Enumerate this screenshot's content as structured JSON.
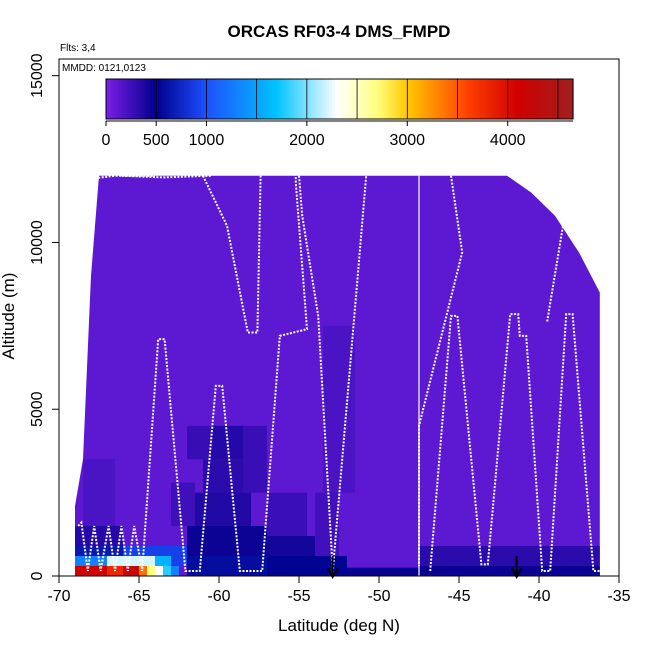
{
  "chart_data": {
    "type": "heatmap",
    "title": "ORCAS RF03-4 DMS_FMPD",
    "xlabel": "Latitude (deg N)",
    "ylabel": "Altitude (m)",
    "xlim": [
      -70,
      -35
    ],
    "ylim": [
      0,
      15500
    ],
    "x_ticks": [
      -70,
      -65,
      -60,
      -55,
      -50,
      -45,
      -40,
      -35
    ],
    "x_tick_labels": [
      "-70",
      "-65",
      "-60",
      "-55",
      "-50",
      "-45",
      "-40",
      "-35"
    ],
    "y_ticks": [
      0,
      5000,
      10000,
      15000
    ],
    "y_tick_labels": [
      "0",
      "5000",
      "10000",
      "15000"
    ],
    "notes": {
      "flights": "Flts: 3,4",
      "dates": "MMDD: 0121,0123"
    },
    "colorbar": {
      "min": 0,
      "max": 4650,
      "ticks": [
        0,
        500,
        1000,
        2000,
        3000,
        4000
      ],
      "tick_labels": [
        "0",
        "500",
        "1000",
        "2000",
        "3000",
        "4000"
      ],
      "stops": [
        {
          "v": 0,
          "color": "#7b1fe8"
        },
        {
          "v": 500,
          "color": "#00008c"
        },
        {
          "v": 1000,
          "color": "#1e50ff"
        },
        {
          "v": 1700,
          "color": "#00c3ff"
        },
        {
          "v": 2300,
          "color": "#ffffff"
        },
        {
          "v": 2700,
          "color": "#ffff80"
        },
        {
          "v": 3000,
          "color": "#ffc800"
        },
        {
          "v": 3600,
          "color": "#ff4000"
        },
        {
          "v": 4100,
          "color": "#d00000"
        },
        {
          "v": 4650,
          "color": "#a02020"
        }
      ]
    },
    "background_value": 120,
    "coverage": [
      {
        "x": -69,
        "top": 2100
      },
      {
        "x": -68.5,
        "top": 3500
      },
      {
        "x": -68,
        "top": 9000
      },
      {
        "x": -67.5,
        "top": 12000
      },
      {
        "x": -47.5,
        "top": 12000
      },
      {
        "x": -42,
        "top": 12000
      },
      {
        "x": -40.5,
        "top": 11500
      },
      {
        "x": -39,
        "top": 10800
      },
      {
        "x": -37.5,
        "top": 9700
      },
      {
        "x": -36.2,
        "top": 8500
      },
      {
        "x": -36.2,
        "top": 0
      },
      {
        "x": -69,
        "top": 0
      }
    ],
    "cells": [
      {
        "x": [
          -69,
          -67
        ],
        "y": [
          0,
          300
        ],
        "v": 4100
      },
      {
        "x": [
          -67,
          -66
        ],
        "y": [
          0,
          300
        ],
        "v": 3800
      },
      {
        "x": [
          -66,
          -65
        ],
        "y": [
          0,
          300
        ],
        "v": 4200
      },
      {
        "x": [
          -65,
          -64.5
        ],
        "y": [
          0,
          300
        ],
        "v": 3400
      },
      {
        "x": [
          -64.5,
          -64
        ],
        "y": [
          0,
          300
        ],
        "v": 2700
      },
      {
        "x": [
          -64,
          -63.5
        ],
        "y": [
          0,
          300
        ],
        "v": 2300
      },
      {
        "x": [
          -63.5,
          -63
        ],
        "y": [
          0,
          300
        ],
        "v": 1800
      },
      {
        "x": [
          -63,
          -62.5
        ],
        "y": [
          0,
          300
        ],
        "v": 1300
      },
      {
        "x": [
          -69,
          -67
        ],
        "y": [
          300,
          600
        ],
        "v": 1300
      },
      {
        "x": [
          -67,
          -64
        ],
        "y": [
          300,
          600
        ],
        "v": 2200
      },
      {
        "x": [
          -64,
          -63
        ],
        "y": [
          300,
          600
        ],
        "v": 1600
      },
      {
        "x": [
          -63,
          -62
        ],
        "y": [
          300,
          600
        ],
        "v": 900
      },
      {
        "x": [
          -69,
          -66
        ],
        "y": [
          600,
          900
        ],
        "v": 650
      },
      {
        "x": [
          -66,
          -62
        ],
        "y": [
          600,
          900
        ],
        "v": 900
      },
      {
        "x": [
          -62,
          -57
        ],
        "y": [
          0,
          600
        ],
        "v": 580
      },
      {
        "x": [
          -57,
          -52
        ],
        "y": [
          0,
          600
        ],
        "v": 520
      },
      {
        "x": [
          -52,
          -47.5
        ],
        "y": [
          0,
          250
        ],
        "v": 470
      },
      {
        "x": [
          -47.5,
          -36.2
        ],
        "y": [
          0,
          300
        ],
        "v": 460
      },
      {
        "x": [
          -62,
          -57
        ],
        "y": [
          600,
          1500
        ],
        "v": 450
      },
      {
        "x": [
          -57,
          -53
        ],
        "y": [
          600,
          1200
        ],
        "v": 420
      },
      {
        "x": [
          -69,
          -66
        ],
        "y": [
          900,
          1500
        ],
        "v": 350
      },
      {
        "x": [
          -47.5,
          -36.2
        ],
        "y": [
          300,
          900
        ],
        "v": 330
      },
      {
        "x": [
          -61.5,
          -58
        ],
        "y": [
          1500,
          2500
        ],
        "v": 370
      },
      {
        "x": [
          -61,
          -58.5
        ],
        "y": [
          2500,
          3500
        ],
        "v": 330
      },
      {
        "x": [
          -60.5,
          -58.5
        ],
        "y": [
          3500,
          4500
        ],
        "v": 350
      },
      {
        "x": [
          -62,
          -60.5
        ],
        "y": [
          3500,
          4500
        ],
        "v": 280
      },
      {
        "x": [
          -58.5,
          -57
        ],
        "y": [
          2500,
          4500
        ],
        "v": 270
      },
      {
        "x": [
          -63,
          -61.5
        ],
        "y": [
          1500,
          2800
        ],
        "v": 250
      },
      {
        "x": [
          -57,
          -54.5
        ],
        "y": [
          1200,
          2500
        ],
        "v": 260
      },
      {
        "x": [
          -53.5,
          -51.5
        ],
        "y": [
          2500,
          7500
        ],
        "v": 200
      },
      {
        "x": [
          -54,
          -52.5
        ],
        "y": [
          600,
          2500
        ],
        "v": 240
      },
      {
        "x": [
          -68.5,
          -66.5
        ],
        "y": [
          1500,
          3500
        ],
        "v": 200
      }
    ],
    "flight_track": [
      [
        -68.8,
        1500
      ],
      [
        -68.6,
        1600
      ],
      [
        -68.2,
        150
      ],
      [
        -67.8,
        1500
      ],
      [
        -67.4,
        150
      ],
      [
        -66.9,
        1500
      ],
      [
        -66.5,
        150
      ],
      [
        -66.1,
        1500
      ],
      [
        -65.7,
        150
      ],
      [
        -65.3,
        1500
      ],
      [
        -64.8,
        150
      ],
      [
        -63.8,
        7100
      ],
      [
        -63.4,
        7100
      ],
      [
        -62.1,
        150
      ],
      [
        -61.2,
        150
      ],
      [
        -60.2,
        5700
      ],
      [
        -59.8,
        5700
      ],
      [
        -58.7,
        150
      ],
      [
        -57.3,
        150
      ],
      [
        -56.2,
        7200
      ],
      [
        -54.5,
        7400
      ],
      [
        -55.2,
        11800
      ],
      [
        -55.2,
        12100
      ]
    ],
    "flight_track2": [
      [
        -68.2,
        11900
      ],
      [
        -66.5,
        12000
      ],
      [
        -64.0,
        12000
      ]
    ],
    "flight_track3": [
      [
        -66.1,
        12000
      ],
      [
        -63.5,
        11950
      ],
      [
        -60.5,
        12000
      ]
    ],
    "flight_track4": [
      [
        -61.0,
        12000
      ],
      [
        -59.5,
        10500
      ],
      [
        -58.2,
        7300
      ],
      [
        -57.6,
        7300
      ],
      [
        -57.4,
        12000
      ]
    ],
    "flight_track5": [
      [
        -55.0,
        12000
      ],
      [
        -54.8,
        10800
      ],
      [
        -53.8,
        7800
      ],
      [
        -52.9,
        250
      ],
      [
        -52.9,
        100
      ],
      [
        -50.8,
        12000
      ]
    ],
    "flight_track6": [
      [
        -45.5,
        12000
      ],
      [
        -44.8,
        9700
      ],
      [
        -47.5,
        4500
      ],
      [
        -47.5,
        300
      ]
    ],
    "flight_track7": [
      [
        -46.8,
        150
      ],
      [
        -45.5,
        7800
      ],
      [
        -45.1,
        7800
      ],
      [
        -43.6,
        350
      ],
      [
        -43.2,
        350
      ],
      [
        -41.8,
        7850
      ],
      [
        -41.3,
        7850
      ],
      [
        -41.2,
        7200
      ],
      [
        -40.8,
        7200
      ],
      [
        -39.8,
        150
      ],
      [
        -39.3,
        150
      ],
      [
        -38.3,
        7850
      ],
      [
        -37.9,
        7850
      ],
      [
        -36.6,
        150
      ],
      [
        -36.2,
        150
      ]
    ],
    "flight_track8": [
      [
        -40.0,
        12000
      ],
      [
        -38.5,
        10500
      ],
      [
        -39.5,
        7600
      ]
    ],
    "vertical_line_x": -47.5,
    "arrows_x": [
      -52.9,
      -41.4
    ]
  }
}
